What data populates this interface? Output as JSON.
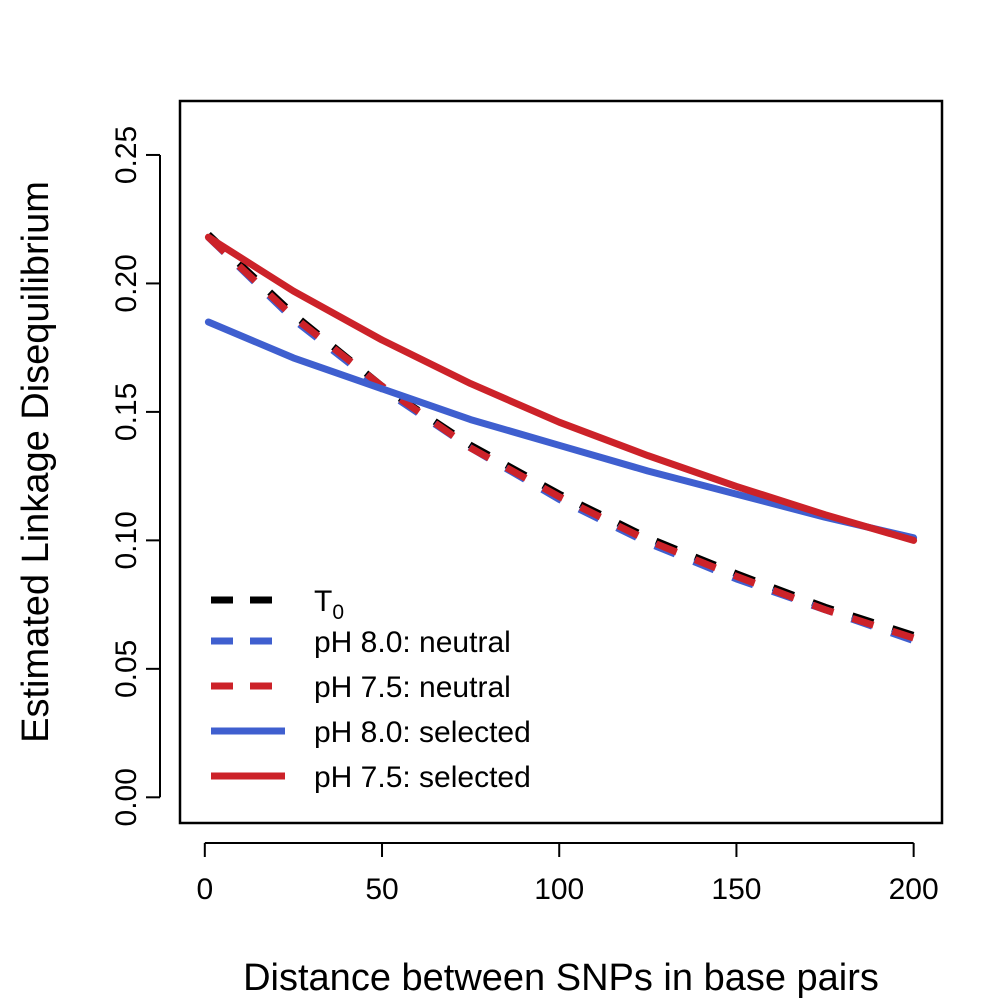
{
  "chart_data": {
    "type": "line",
    "xlabel": "Distance between SNPs in base pairs",
    "ylabel": "Estimated Linkage Disequilibrium",
    "xlim": [
      -7,
      208
    ],
    "ylim": [
      -0.01,
      0.271
    ],
    "xticks": [
      0,
      50,
      100,
      150,
      200
    ],
    "yticks": [
      0.0,
      0.05,
      0.1,
      0.15,
      0.2,
      0.25
    ],
    "xtick_labels": [
      "0",
      "50",
      "100",
      "150",
      "200"
    ],
    "ytick_labels": [
      "0.00",
      "0.05",
      "0.10",
      "0.15",
      "0.20",
      "0.25"
    ],
    "grid": false,
    "legend_position": "bottom-left",
    "x": [
      1,
      25,
      50,
      75,
      100,
      125,
      150,
      175,
      200
    ],
    "series": [
      {
        "name": "T",
        "name_subscript": "0",
        "color": "#000000",
        "style": "dashed",
        "values": [
          0.219,
          0.188,
          0.16,
          0.137,
          0.118,
          0.101,
          0.087,
          0.074,
          0.063
        ]
      },
      {
        "name": "pH 8.0: neutral",
        "color": "#3f5fcf",
        "style": "dashed",
        "values": [
          0.218,
          0.186,
          0.159,
          0.136,
          0.116,
          0.099,
          0.085,
          0.073,
          0.061
        ]
      },
      {
        "name": "pH 7.5: neutral",
        "color": "#cc2229",
        "style": "dashed",
        "values": [
          0.218,
          0.187,
          0.16,
          0.136,
          0.117,
          0.1,
          0.086,
          0.073,
          0.062
        ]
      },
      {
        "name": "pH 8.0: selected",
        "color": "#3f5fcf",
        "style": "solid",
        "values": [
          0.185,
          0.171,
          0.159,
          0.147,
          0.137,
          0.127,
          0.118,
          0.109,
          0.101
        ]
      },
      {
        "name": "pH 7.5: selected",
        "color": "#cc2229",
        "style": "solid",
        "values": [
          0.218,
          0.197,
          0.178,
          0.161,
          0.146,
          0.133,
          0.121,
          0.11,
          0.1
        ]
      }
    ]
  }
}
